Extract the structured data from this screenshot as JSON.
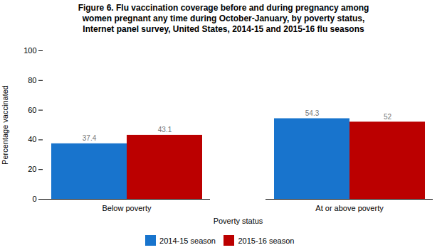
{
  "chart_data": {
    "type": "bar",
    "title": "Figure 6. Flu vaccination coverage before and during pregnancy among\nwomen pregnant any time during October-January, by poverty status,\nInternet panel survey, United States, 2014-15 and 2015-16 flu seasons",
    "xlabel": "Poverty status",
    "ylabel": "Percentage vaccinated",
    "categories": [
      "Below poverty",
      "At or above poverty"
    ],
    "series": [
      {
        "name": "2014-15 season",
        "color": "#1874CD",
        "values": [
          37.4,
          54.3
        ]
      },
      {
        "name": "2015-16 season",
        "color": "#BB0000",
        "values": [
          43.1,
          52.0
        ]
      }
    ],
    "ylim": [
      0,
      100
    ],
    "yticks": [
      0,
      20,
      40,
      60,
      80,
      100
    ],
    "grid": false,
    "legend": "bottom",
    "data_labels": true
  }
}
